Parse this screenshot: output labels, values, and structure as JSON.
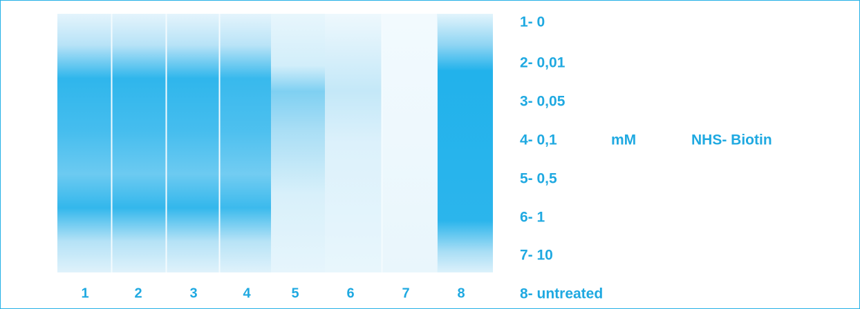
{
  "lanes": [
    "1",
    "2",
    "3",
    "4",
    "5",
    "6",
    "7",
    "8"
  ],
  "legend": [
    "1- 0",
    "2- 0,01",
    "3- 0,05",
    "4- 0,1",
    "5- 0,5",
    "6- 1",
    "7- 10",
    "8- untreated"
  ],
  "unit": "mM",
  "reagent": "NHS- Biotin"
}
